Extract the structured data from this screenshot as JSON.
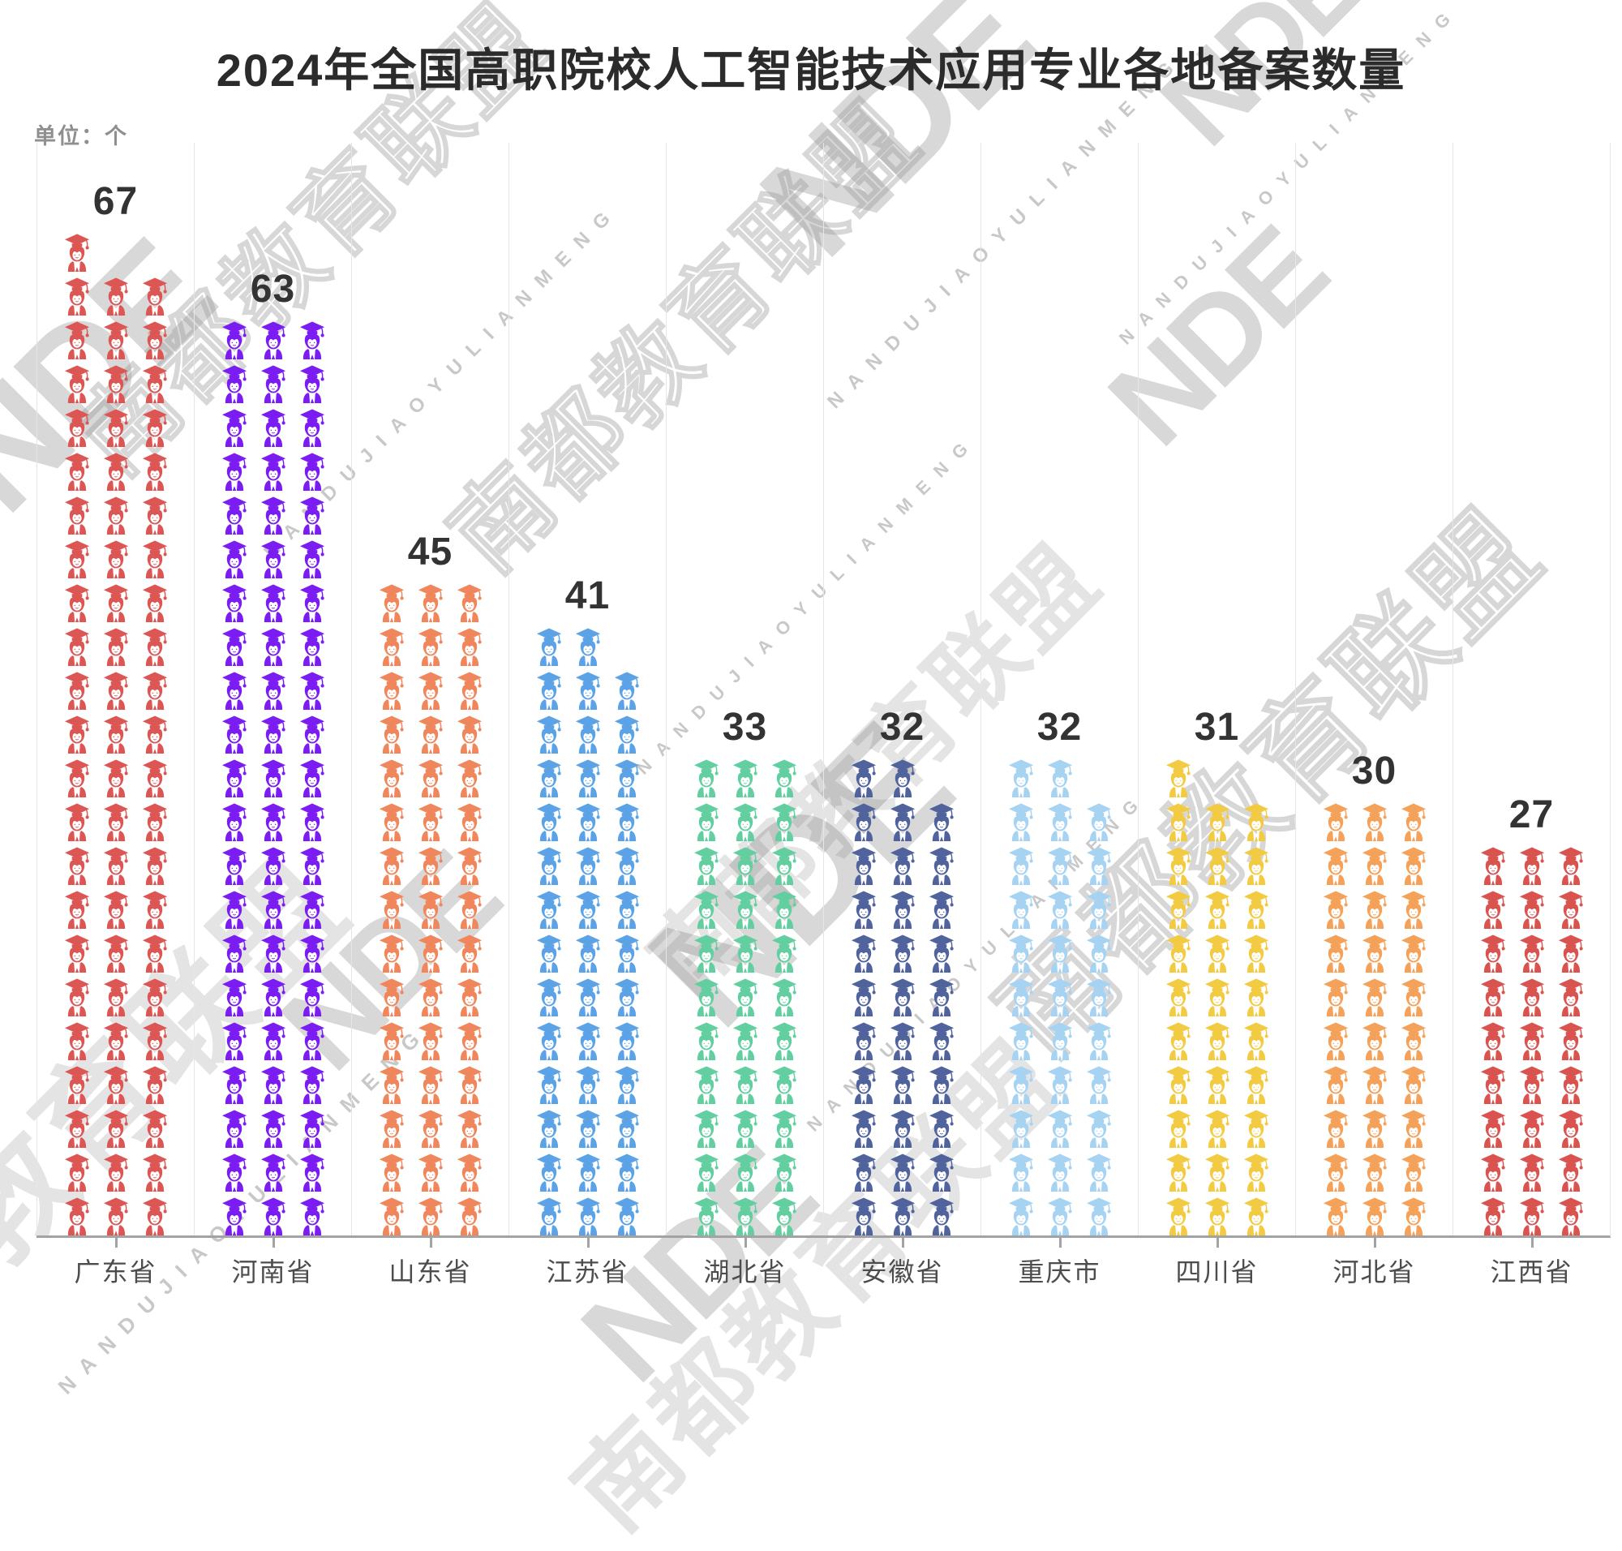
{
  "title": "2024年全国高职院校人工智能技术应用专业各地备案数量",
  "unit_label": "单位：个",
  "watermark": {
    "logo_text": "NDE",
    "org_name_cn": "南都教育联盟",
    "org_name_pinyin": "NANDUJIAOYULIANMENG"
  },
  "chart_data": {
    "type": "bar",
    "subtype": "pictogram",
    "pictogram_symbol": "graduate-student-icon",
    "title": "2024年全国高职院校人工智能技术应用专业各地备案数量",
    "unit": "个",
    "xlabel": "",
    "ylabel": "",
    "grid": "vertical-category-separators",
    "legend": "none",
    "categories": [
      "广东省",
      "河南省",
      "山东省",
      "江苏省",
      "湖北省",
      "安徽省",
      "重庆市",
      "四川省",
      "河北省",
      "江西省"
    ],
    "values": [
      67,
      63,
      45,
      41,
      33,
      32,
      32,
      31,
      30,
      27
    ],
    "colors": [
      "#dc5654",
      "#7b1df2",
      "#f0875c",
      "#5ba3e6",
      "#63cfa0",
      "#50639c",
      "#a6d3f2",
      "#f2cb43",
      "#f4a159",
      "#d9534f"
    ],
    "icon_columns": [
      [
        23,
        22,
        22
      ],
      [
        21,
        21,
        21
      ],
      [
        15,
        15,
        15
      ],
      [
        14,
        14,
        13
      ],
      [
        11,
        11,
        11
      ],
      [
        11,
        11,
        10
      ],
      [
        11,
        11,
        10
      ],
      [
        11,
        10,
        10
      ],
      [
        10,
        10,
        10
      ],
      [
        9,
        9,
        9
      ]
    ],
    "value_label_color": "#333333",
    "axis_label_color": "#4d4d4d",
    "axis_line_color": "#a3a3a3",
    "grid_line_color": "#e6e6e6"
  }
}
